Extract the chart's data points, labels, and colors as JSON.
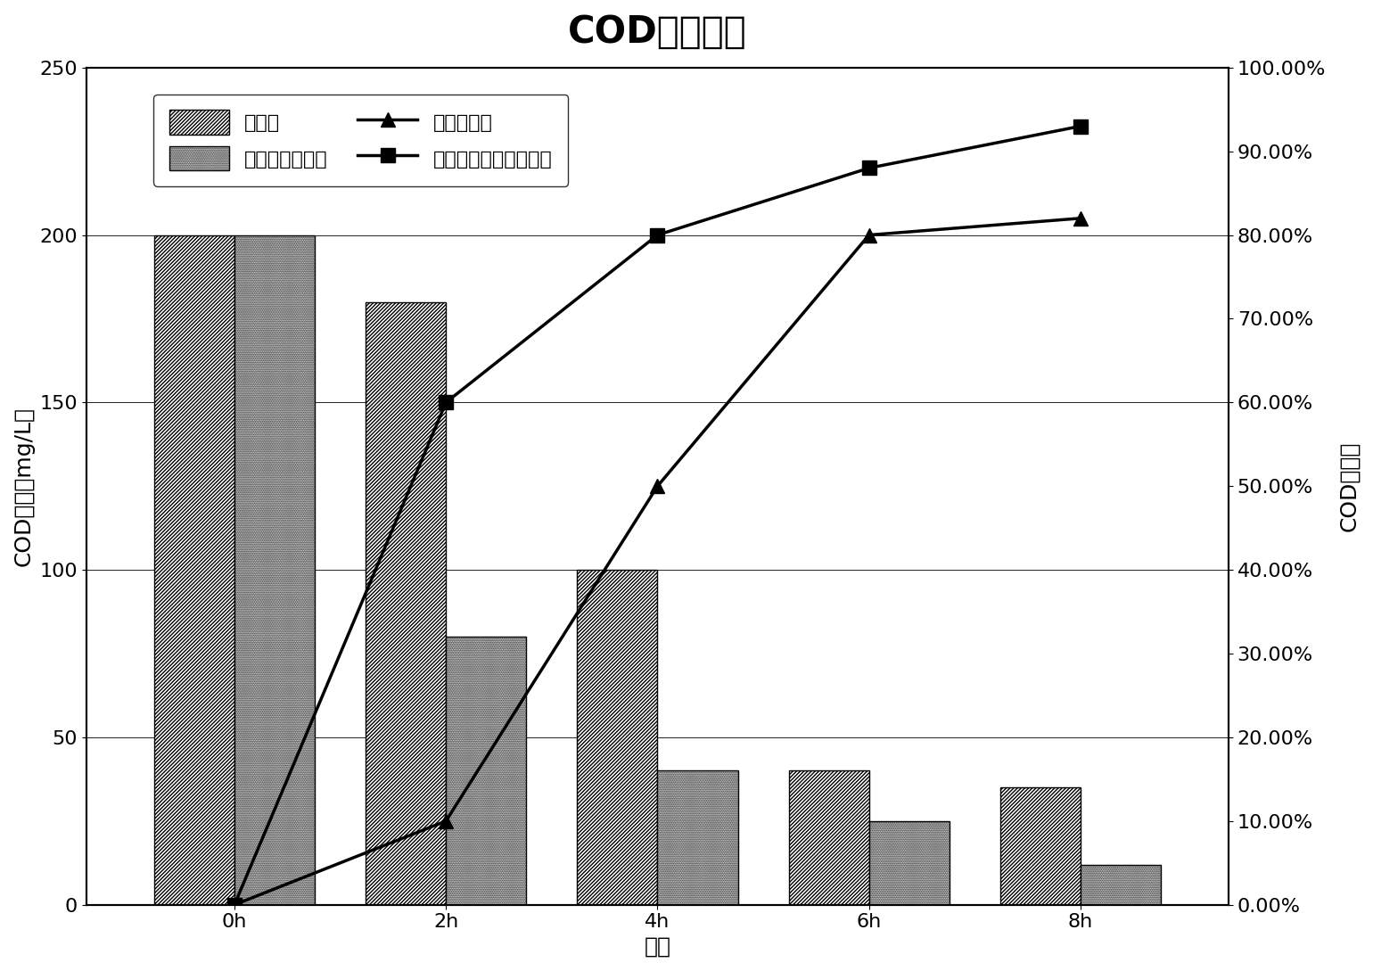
{
  "title": "COD去除效果",
  "xlabel": "时间",
  "ylabel_left": "COD浓度（mg/L）",
  "ylabel_right": "COD去除率",
  "x_labels": [
    "0h",
    "2h",
    "4h",
    "6h",
    "8h"
  ],
  "x_positions": [
    0,
    1,
    2,
    3,
    4
  ],
  "bar_width": 0.38,
  "control_bars": [
    200,
    180,
    100,
    40,
    35
  ],
  "microbial_bars": [
    200,
    80,
    40,
    25,
    12
  ],
  "control_removal": [
    0.0,
    0.1,
    0.5,
    0.8,
    0.82
  ],
  "microbial_removal": [
    0.0,
    0.6,
    0.8,
    0.88,
    0.93
  ],
  "ylim_left": [
    0,
    250
  ],
  "ylim_right": [
    0.0,
    1.0
  ],
  "background_color": "#ffffff",
  "title_fontsize": 30,
  "axis_label_fontsize": 18,
  "tick_fontsize": 16,
  "legend_fontsize": 16,
  "legend1_label": "对照组",
  "legend2_label": "复合微生物制剂",
  "legend3_label": "对照去除率",
  "legend4_label": "复合微生物制剂去除率",
  "yticks_left": [
    0,
    50,
    100,
    150,
    200,
    250
  ],
  "yticks_right": [
    0.0,
    0.1,
    0.2,
    0.3,
    0.4,
    0.5,
    0.6,
    0.7,
    0.8,
    0.9,
    1.0
  ],
  "ytick_labels_right": [
    "0.00%",
    "10.00%",
    "20.00%",
    "30.00%",
    "40.00%",
    "50.00%",
    "60.00%",
    "70.00%",
    "80.00%",
    "90.00%",
    "100.00%"
  ]
}
